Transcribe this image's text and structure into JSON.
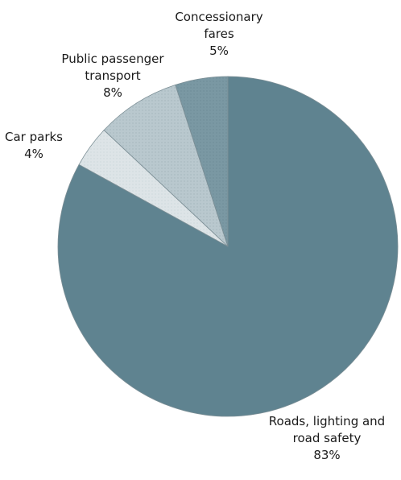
{
  "chart_data": {
    "type": "pie",
    "slices": [
      {
        "label": [
          "Roads, lighting and",
          "road safety"
        ],
        "value": 83,
        "value_label": "83%",
        "color": "#5f8390"
      },
      {
        "label": [
          "Car parks"
        ],
        "value": 4,
        "value_label": "4%",
        "color": "#dde4e7"
      },
      {
        "label": [
          "Public passenger",
          "transport"
        ],
        "value": 8,
        "value_label": "8%",
        "color": "#b9c8ce"
      },
      {
        "label": [
          "Concessionary",
          "fares"
        ],
        "value": 5,
        "value_label": "5%",
        "color": "#7a98a3"
      }
    ],
    "legend": "none"
  }
}
